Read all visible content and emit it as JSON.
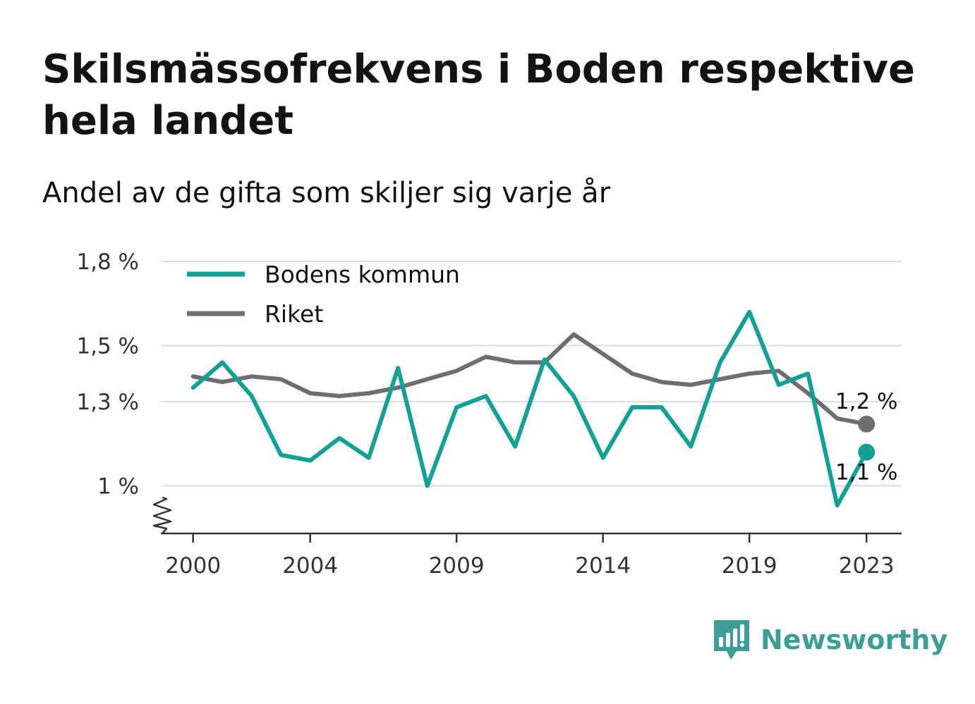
{
  "title": "Skilsmässofrekvens i Boden respektive hela landet",
  "subtitle": "Andel av de gifta som skiljer sig varje år",
  "brand": {
    "name": "Newsworthy",
    "icon": "bar-chart-speech-bubble-icon"
  },
  "colors": {
    "bodens": "#12a194",
    "riket": "#6f6d74",
    "grid": "#dddddd",
    "axis": "#333333",
    "brand": "#3d9e97"
  },
  "chart_data": {
    "type": "line",
    "x": [
      2000,
      2001,
      2002,
      2003,
      2004,
      2005,
      2006,
      2007,
      2008,
      2009,
      2010,
      2011,
      2012,
      2013,
      2014,
      2015,
      2016,
      2017,
      2018,
      2019,
      2020,
      2021,
      2022,
      2023
    ],
    "x_tick_labels": [
      "2000",
      "2004",
      "2009",
      "2014",
      "2019",
      "2023"
    ],
    "x_ticks": [
      2000,
      2004,
      2009,
      2014,
      2019,
      2023
    ],
    "y_tick_labels": [
      "1,8 %",
      "1,5 %",
      "1,3 %",
      "1 %"
    ],
    "y_ticks": [
      1.8,
      1.5,
      1.3,
      1.0
    ],
    "ylim": [
      0.83,
      1.8
    ],
    "xlim": [
      1998.9,
      2024.2
    ],
    "y_axis_broken": true,
    "grid": true,
    "legend_position": "top-left",
    "series": [
      {
        "name": "Bodens kommun",
        "values": [
          1.35,
          1.44,
          1.32,
          1.11,
          1.09,
          1.17,
          1.1,
          1.42,
          1.0,
          1.28,
          1.32,
          1.14,
          1.45,
          1.32,
          1.1,
          1.28,
          1.28,
          1.14,
          1.44,
          1.62,
          1.36,
          1.4,
          0.93,
          1.12
        ],
        "end_label": "1,1 %"
      },
      {
        "name": "Riket",
        "values": [
          1.39,
          1.37,
          1.39,
          1.38,
          1.33,
          1.32,
          1.33,
          1.35,
          1.38,
          1.41,
          1.46,
          1.44,
          1.44,
          1.54,
          1.47,
          1.4,
          1.37,
          1.36,
          1.38,
          1.4,
          1.41,
          1.33,
          1.24,
          1.22
        ],
        "end_label": "1,2 %"
      }
    ]
  }
}
